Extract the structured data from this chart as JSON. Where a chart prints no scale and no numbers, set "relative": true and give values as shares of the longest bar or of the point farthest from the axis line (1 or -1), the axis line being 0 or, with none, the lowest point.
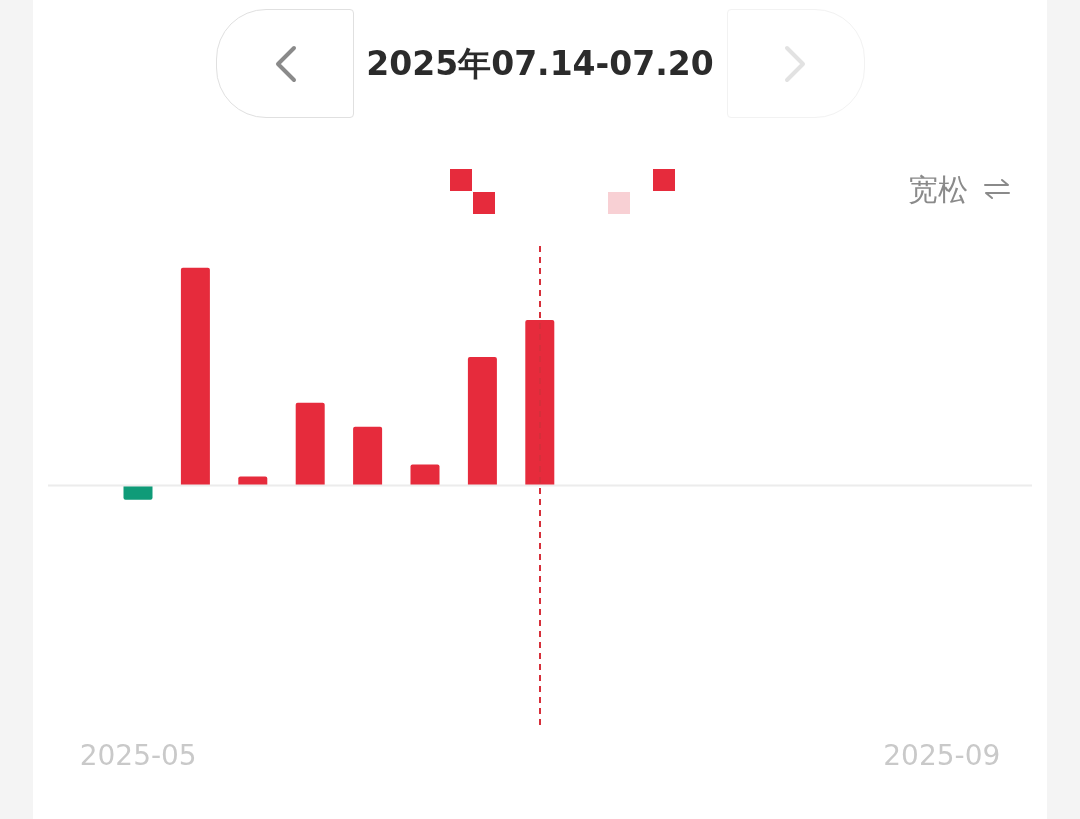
{
  "chart_data": {
    "type": "bar",
    "title": "2025年07.14-07.20",
    "x": [
      "2025-05-26",
      "2025-06-02",
      "2025-06-09",
      "2025-06-16",
      "2025-06-23",
      "2025-06-30",
      "2025-07-07",
      "2025-07-14"
    ],
    "values": [
      -0.065,
      1,
      0.041,
      0.38,
      0.27,
      0.097,
      0.59,
      0.76
    ],
    "colors": [
      "#0f9b78",
      "#e62b3c",
      "#e62b3c",
      "#e62b3c",
      "#e62b3c",
      "#e62b3c",
      "#e62b3c",
      "#e62b3c"
    ],
    "relative": true,
    "xlim": [
      "2025-05-15",
      "2025-09-12"
    ],
    "xticks": [
      {
        "value": "2025-05-26",
        "label": "2025-05"
      },
      {
        "value": "2025-09-01",
        "label": "2025-09"
      }
    ],
    "ref_lines": [
      {
        "axis": "x",
        "value": "2025-07-14",
        "color": "#d62f3a",
        "line_style": "dashed"
      }
    ],
    "annotations": [
      "宽松"
    ],
    "tick_labels": "x"
  }
}
